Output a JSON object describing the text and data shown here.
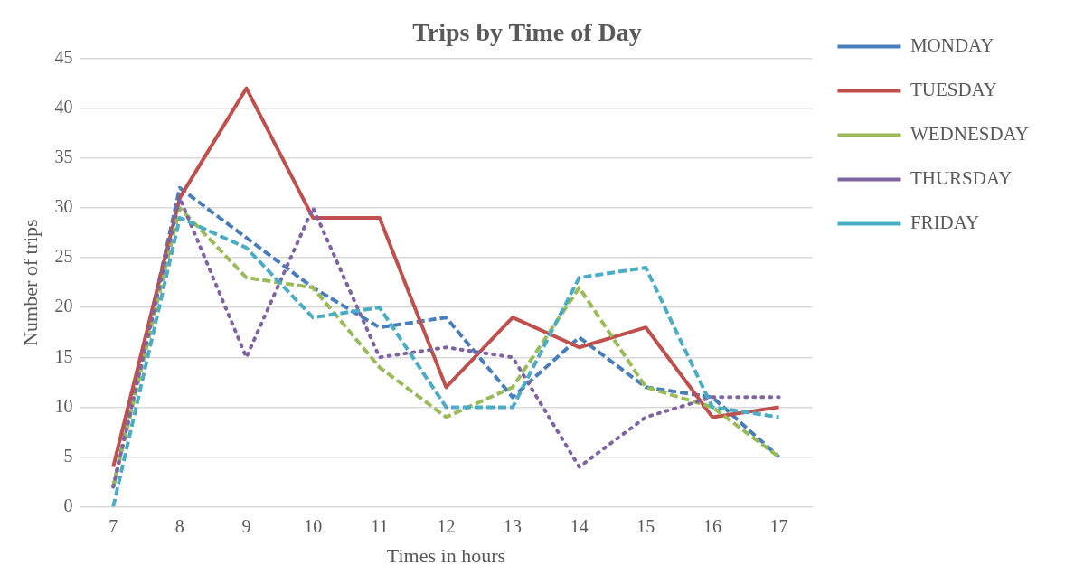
{
  "chart_data": {
    "type": "line",
    "title": "Trips by Time of Day",
    "xlabel": "Times in hours",
    "ylabel": "Number of trips",
    "x": [
      7,
      8,
      9,
      10,
      11,
      12,
      13,
      14,
      15,
      16,
      17
    ],
    "xlim": [
      6.5,
      17.5
    ],
    "xticks": [
      7,
      8,
      9,
      10,
      11,
      12,
      13,
      14,
      15,
      16,
      17
    ],
    "ylim": [
      0,
      45
    ],
    "yticks": [
      0,
      5,
      10,
      15,
      20,
      25,
      30,
      35,
      40,
      45
    ],
    "grid": "y",
    "legend": "right",
    "marker": "none",
    "series": [
      {
        "name": "MONDAY",
        "color": "#4a7ebb",
        "line_style": "dashed",
        "values": [
          2,
          32,
          27,
          22,
          18,
          19,
          11,
          17,
          12,
          11,
          5
        ]
      },
      {
        "name": "TUESDAY",
        "color": "#c0504d",
        "line_style": "solid",
        "values": [
          4,
          31,
          42,
          29,
          29,
          12,
          19,
          16,
          18,
          9,
          10
        ]
      },
      {
        "name": "WEDNESDAY",
        "color": "#9bbb59",
        "line_style": "dashed",
        "values": [
          2,
          30,
          23,
          22,
          14,
          9,
          12,
          22,
          12,
          10,
          5
        ]
      },
      {
        "name": "THURSDAY",
        "color": "#8064a2",
        "line_style": "dotted",
        "values": [
          2,
          31,
          15,
          30,
          15,
          16,
          15,
          4,
          9,
          11,
          11
        ]
      },
      {
        "name": "FRIDAY",
        "color": "#4bacc6",
        "line_style": "dashed",
        "values": [
          0,
          29,
          26,
          19,
          20,
          10,
          10,
          23,
          24,
          10,
          9
        ]
      }
    ]
  }
}
